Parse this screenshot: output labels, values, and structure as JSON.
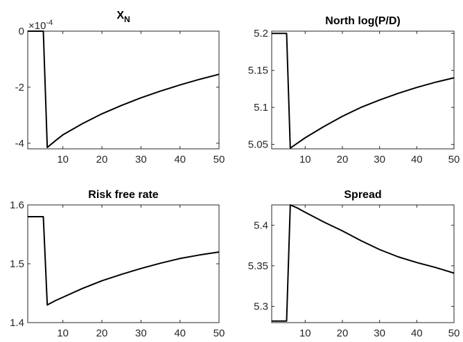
{
  "chart_data": [
    {
      "type": "line",
      "title_main": "X",
      "title_sub": "N",
      "exponent": "×10",
      "exponent_power": "-4",
      "xlim": [
        1,
        50
      ],
      "ylim": [
        -4.2,
        0
      ],
      "xticks": [
        10,
        20,
        30,
        40,
        50
      ],
      "yticks": [
        -4,
        -2,
        0
      ],
      "yticklabels": [
        "-4",
        "-2",
        "0"
      ],
      "series": [
        {
          "x": [
            1,
            5,
            6,
            8,
            10,
            15,
            20,
            25,
            30,
            35,
            40,
            45,
            50
          ],
          "y": [
            0,
            0,
            -4.15,
            -3.92,
            -3.7,
            -3.3,
            -2.95,
            -2.65,
            -2.38,
            -2.14,
            -1.92,
            -1.72,
            -1.54
          ]
        }
      ]
    },
    {
      "type": "line",
      "title": "North log(P/D)",
      "xlim": [
        1,
        50
      ],
      "ylim": [
        5.044,
        5.203
      ],
      "xticks": [
        10,
        20,
        30,
        40,
        50
      ],
      "yticks": [
        5.05,
        5.1,
        5.15,
        5.2
      ],
      "yticklabels": [
        "5.05",
        "5.1",
        "5.15",
        "5.2"
      ],
      "series": [
        {
          "x": [
            1,
            5,
            6,
            8,
            10,
            15,
            20,
            25,
            30,
            35,
            40,
            45,
            50
          ],
          "y": [
            5.2,
            5.2,
            5.045,
            5.052,
            5.059,
            5.074,
            5.088,
            5.1,
            5.11,
            5.119,
            5.127,
            5.134,
            5.14
          ]
        }
      ]
    },
    {
      "type": "line",
      "title": "Risk free rate",
      "xlim": [
        1,
        50
      ],
      "ylim": [
        1.4,
        1.6
      ],
      "xticks": [
        10,
        20,
        30,
        40,
        50
      ],
      "yticks": [
        1.4,
        1.5,
        1.6
      ],
      "yticklabels": [
        "1.4",
        "1.5",
        "1.6"
      ],
      "series": [
        {
          "x": [
            1,
            5,
            6,
            8,
            10,
            15,
            20,
            25,
            30,
            35,
            40,
            45,
            50
          ],
          "y": [
            1.58,
            1.58,
            1.43,
            1.437,
            1.443,
            1.458,
            1.471,
            1.482,
            1.492,
            1.501,
            1.509,
            1.515,
            1.52
          ]
        }
      ]
    },
    {
      "type": "line",
      "title": "Spread",
      "xlim": [
        1,
        50
      ],
      "ylim": [
        5.28,
        5.425
      ],
      "xticks": [
        10,
        20,
        30,
        40,
        50
      ],
      "yticks": [
        5.3,
        5.35,
        5.4
      ],
      "yticklabels": [
        "5.3",
        "5.35",
        "5.4"
      ],
      "series": [
        {
          "x": [
            1,
            5,
            6,
            8,
            10,
            15,
            20,
            25,
            30,
            35,
            40,
            45,
            50
          ],
          "y": [
            5.282,
            5.282,
            5.425,
            5.421,
            5.416,
            5.404,
            5.393,
            5.381,
            5.37,
            5.361,
            5.354,
            5.348,
            5.341
          ]
        }
      ]
    }
  ]
}
